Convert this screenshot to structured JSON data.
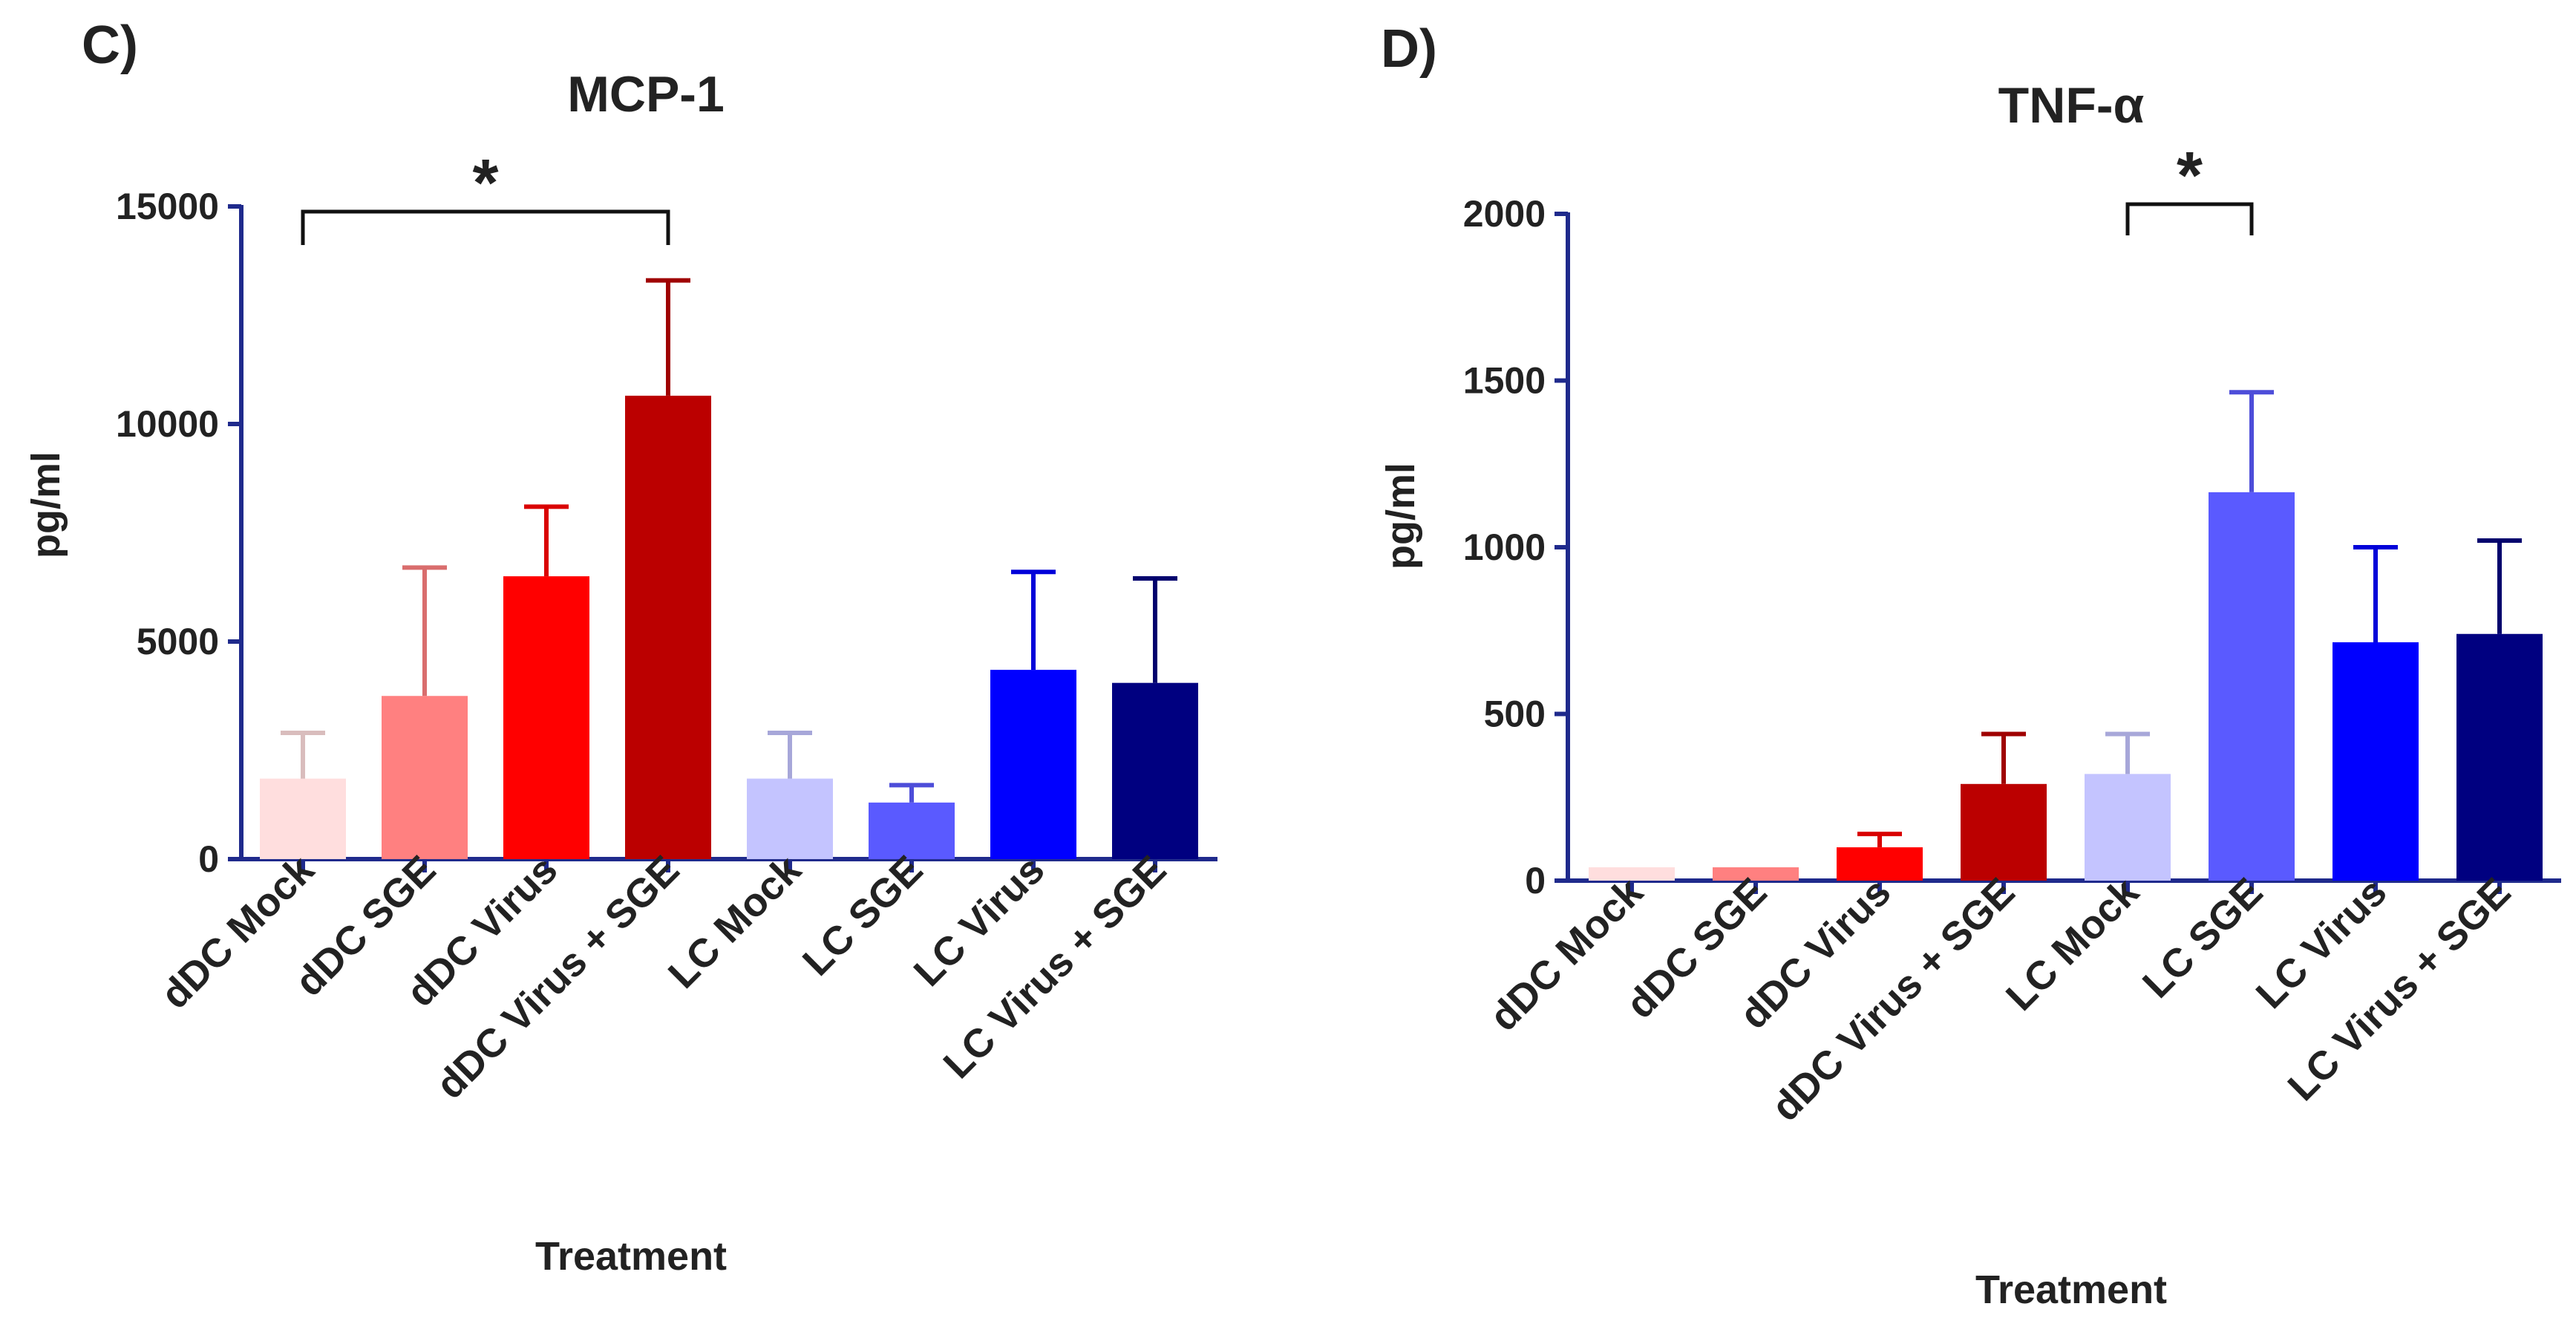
{
  "chart_data": [
    {
      "panel": "C)",
      "type": "bar",
      "title": "MCP-1",
      "xlabel": "Treatment",
      "ylabel": "pg/ml",
      "ylim": [
        0,
        15000
      ],
      "yticks": [
        0,
        5000,
        10000,
        15000
      ],
      "yticklabels": [
        "0",
        "5000",
        "10000",
        "15000"
      ],
      "categories": [
        "dDC Mock",
        "dDC SGE",
        "dDC Virus",
        "dDC Virus + SGE",
        "LC Mock",
        "LC SGE",
        "LC Virus",
        "LC Virus + SGE"
      ],
      "values": [
        1850,
        3750,
        6500,
        10650,
        1850,
        1300,
        4350,
        4050
      ],
      "errors": [
        1050,
        2950,
        1600,
        2650,
        1050,
        400,
        2250,
        2400
      ],
      "colors": [
        "#ffdede",
        "#ff8080",
        "#ff0000",
        "#bb0000",
        "#c4c4ff",
        "#5a5aff",
        "#0000ff",
        "#000080"
      ],
      "significance": [
        {
          "from": 0,
          "to": 3,
          "label": "*"
        }
      ]
    },
    {
      "panel": "D)",
      "type": "bar",
      "title": "TNF-α",
      "xlabel": "Treatment",
      "ylabel": "pg/ml",
      "ylim": [
        0,
        2000
      ],
      "yticks": [
        0,
        500,
        1000,
        1500,
        2000
      ],
      "yticklabels": [
        "0",
        "500",
        "1000",
        "1500",
        "2000"
      ],
      "categories": [
        "dDC Mock",
        "dDC SGE",
        "dDC Virus",
        "dDC Virus + SGE",
        "LC Mock",
        "LC SGE",
        "LC Virus",
        "LC Virus + SGE"
      ],
      "values": [
        40,
        40,
        100,
        290,
        320,
        1165,
        715,
        740
      ],
      "errors": [
        0,
        0,
        40,
        150,
        120,
        300,
        285,
        280
      ],
      "colors": [
        "#ffdede",
        "#ff8080",
        "#ff0000",
        "#bb0000",
        "#c4c4ff",
        "#5a5aff",
        "#0000ff",
        "#000080"
      ],
      "significance": [
        {
          "from": 4,
          "to": 5,
          "label": "*"
        }
      ]
    }
  ]
}
